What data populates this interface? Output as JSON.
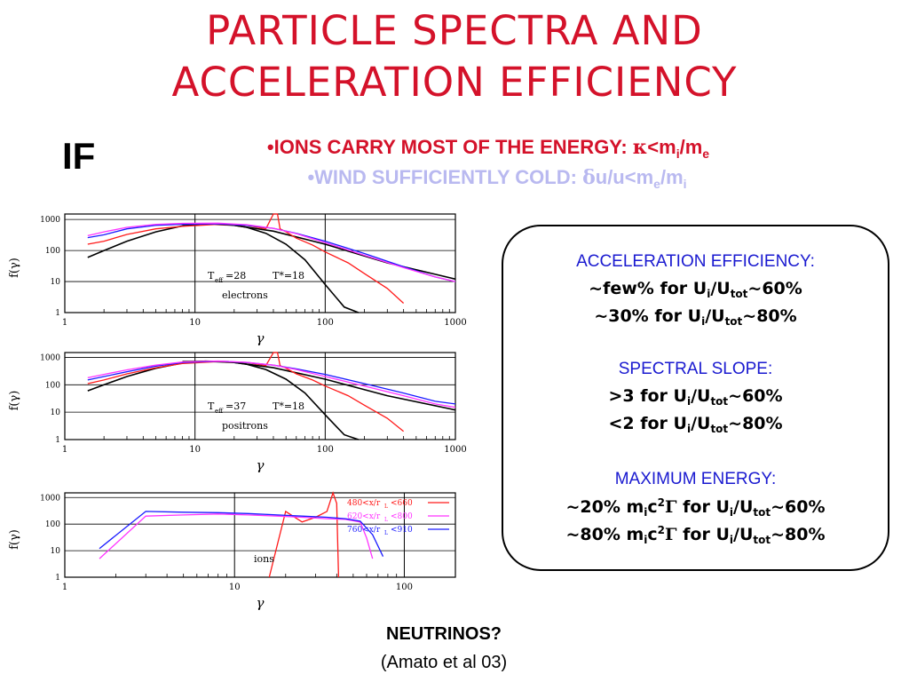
{
  "slide": {
    "title_line1": "PARTICLE SPECTRA AND",
    "title_line2": "ACCELERATION EFFICIENCY",
    "if_label": "IF",
    "cond1_text": "•IONS CARRY MOST OF THE ENERGY: ",
    "cond1_kappa": "κ",
    "cond1_rel": "<m",
    "cond1_sub_i": "i",
    "cond1_slash": "/m",
    "cond1_sub_e": "e",
    "cond2_text": "•WIND SUFFICIENTLY COLD: ",
    "cond2_delta": "δ",
    "cond2_rel": "u/u<m",
    "cond2_sub_e": "e",
    "cond2_slash": "/m",
    "cond2_sub_i": "i",
    "neutrinos": "NEUTRINOS?",
    "reference": "(Amato et al 03)"
  },
  "box": {
    "acc_head": "ACCELERATION EFFICIENCY",
    "acc_l1_a": "~few% for U",
    "acc_l1_b": "~60%",
    "acc_l2_a": "~30% for U",
    "acc_l2_b": "~80%",
    "slope_head": "SPECTRAL SLOPE",
    "slope_l1_a": ">3 for U",
    "slope_l1_b": "~60%",
    "slope_l2_a": "<2 for U",
    "slope_l2_b": "~80%",
    "max_head": "MAXIMUM ENERGY",
    "max_l1_a": "~20% m",
    "max_l1_b": "~60%",
    "max_l2_a": "~80% m",
    "max_l2_b": "~80%",
    "sub_i": "i",
    "slash_u": "/U",
    "sub_tot": "tot",
    "c2": "c",
    "sup2": "2",
    "gamma": "Γ",
    "for_u": " for U",
    "colon": ":"
  },
  "colors": {
    "title": "#d4122a",
    "cond2": "#b9b9f0",
    "box_head": "#1a1ad0",
    "red": "#ff1a1a",
    "blue": "#1a1aff",
    "magenta": "#ff33ff",
    "black": "#000000"
  },
  "chart_data": [
    {
      "type": "line",
      "panel": "electrons",
      "xscale": "log",
      "yscale": "log",
      "xlim": [
        1,
        1000
      ],
      "ylim": [
        1,
        1500
      ],
      "xticks": [
        "1",
        "10",
        "100",
        "1000"
      ],
      "yticks": [
        "1",
        "10",
        "100",
        "1000"
      ],
      "xlabel": "γ",
      "ylabel": "f(γ)",
      "annotations": [
        "T",
        "eff",
        "=28",
        "T*=18",
        "electrons"
      ],
      "series": [
        {
          "color": "black",
          "x": [
            1.5,
            2,
            3,
            5,
            8,
            12,
            18,
            25,
            35,
            50,
            70,
            100,
            140,
            180
          ],
          "y": [
            60,
            100,
            200,
            400,
            620,
            730,
            700,
            560,
            360,
            160,
            50,
            8,
            1.5,
            1
          ]
        },
        {
          "color": "black",
          "x": [
            8,
            12,
            20,
            40,
            100,
            300,
            1000
          ],
          "y": [
            700,
            720,
            650,
            420,
            160,
            40,
            12
          ]
        },
        {
          "color": "red",
          "x": [
            1.5,
            2,
            3,
            5,
            8,
            15,
            25,
            35,
            40,
            43,
            45,
            50,
            60,
            80,
            100,
            150,
            200,
            300,
            400
          ],
          "y": [
            160,
            200,
            330,
            500,
            600,
            700,
            650,
            500,
            2000,
            1700,
            500,
            400,
            250,
            150,
            90,
            40,
            18,
            6,
            2
          ]
        },
        {
          "color": "blue",
          "x": [
            1.5,
            2,
            3,
            5,
            8,
            15,
            25,
            40,
            60,
            100,
            200,
            400,
            700,
            1000
          ],
          "y": [
            260,
            320,
            500,
            650,
            700,
            720,
            650,
            520,
            360,
            200,
            80,
            30,
            14,
            10
          ]
        },
        {
          "color": "magenta",
          "x": [
            1.5,
            2,
            3,
            5,
            8,
            15,
            25,
            40,
            60,
            100,
            200,
            400,
            700,
            1000
          ],
          "y": [
            300,
            400,
            560,
            700,
            750,
            760,
            680,
            520,
            350,
            180,
            70,
            28,
            14,
            10
          ]
        }
      ]
    },
    {
      "type": "line",
      "panel": "positrons",
      "xscale": "log",
      "yscale": "log",
      "xlim": [
        1,
        1000
      ],
      "ylim": [
        1,
        1500
      ],
      "xticks": [
        "1",
        "10",
        "100",
        "1000"
      ],
      "yticks": [
        "1",
        "10",
        "100",
        "1000"
      ],
      "xlabel": "γ",
      "ylabel": "f(γ)",
      "annotations": [
        "T",
        "eff",
        "=37",
        "T*=18",
        "positrons"
      ],
      "series": [
        {
          "color": "black",
          "x": [
            1.5,
            2,
            3,
            5,
            8,
            12,
            18,
            25,
            35,
            50,
            70,
            100,
            140,
            180
          ],
          "y": [
            60,
            100,
            200,
            400,
            620,
            730,
            700,
            560,
            360,
            160,
            50,
            8,
            1.5,
            1
          ]
        },
        {
          "color": "black",
          "x": [
            8,
            12,
            20,
            40,
            100,
            300,
            1000
          ],
          "y": [
            700,
            720,
            650,
            420,
            160,
            40,
            12
          ]
        },
        {
          "color": "red",
          "x": [
            1.5,
            2,
            3,
            5,
            8,
            15,
            25,
            35,
            40,
            43,
            45,
            50,
            60,
            80,
            100,
            150,
            200,
            300,
            400
          ],
          "y": [
            110,
            150,
            250,
            420,
            600,
            700,
            650,
            500,
            2100,
            1800,
            500,
            400,
            250,
            150,
            90,
            40,
            18,
            6,
            2
          ]
        },
        {
          "color": "blue",
          "x": [
            1.5,
            2,
            3,
            5,
            8,
            15,
            25,
            40,
            60,
            100,
            200,
            400,
            700,
            1000
          ],
          "y": [
            150,
            200,
            300,
            480,
            650,
            720,
            650,
            520,
            380,
            240,
            110,
            50,
            25,
            20
          ]
        },
        {
          "color": "magenta",
          "x": [
            1.5,
            2,
            3,
            5,
            8,
            15,
            25,
            40,
            60,
            100,
            200,
            400,
            700,
            1000
          ],
          "y": [
            180,
            240,
            350,
            520,
            680,
            740,
            660,
            520,
            360,
            200,
            90,
            40,
            20,
            15
          ]
        }
      ]
    },
    {
      "type": "line",
      "panel": "ions",
      "xscale": "log",
      "yscale": "log",
      "xlim": [
        1,
        200
      ],
      "ylim": [
        1,
        1500
      ],
      "xticks": [
        "1",
        "10",
        "100"
      ],
      "yticks": [
        "1",
        "10",
        "100",
        "1000"
      ],
      "xlabel": "γ",
      "ylabel": "f(γ)",
      "annotations": [
        "ions"
      ],
      "legend": [
        "480<x/r",
        "L",
        "<660",
        "620<x/r",
        "L",
        "<800",
        "760<x/r",
        "L",
        "<910"
      ],
      "legend_position": "top-right",
      "series": [
        {
          "color": "red",
          "name": "480<x/rL<660",
          "x": [
            16,
            20,
            25,
            30,
            35,
            38,
            40,
            41
          ],
          "y": [
            1,
            300,
            120,
            180,
            300,
            1500,
            600,
            1
          ]
        },
        {
          "color": "magenta",
          "name": "620<x/rL<800",
          "x": [
            1.6,
            3,
            5,
            8,
            12,
            18,
            25,
            35,
            45,
            55,
            60,
            65
          ],
          "y": [
            5,
            200,
            220,
            240,
            220,
            200,
            180,
            160,
            150,
            120,
            30,
            5
          ]
        },
        {
          "color": "blue",
          "name": "760<x/rL<910",
          "x": [
            1.6,
            3,
            5,
            8,
            12,
            18,
            25,
            35,
            45,
            55,
            65,
            75
          ],
          "y": [
            12,
            300,
            280,
            270,
            250,
            220,
            200,
            180,
            160,
            130,
            40,
            6
          ]
        }
      ]
    }
  ]
}
